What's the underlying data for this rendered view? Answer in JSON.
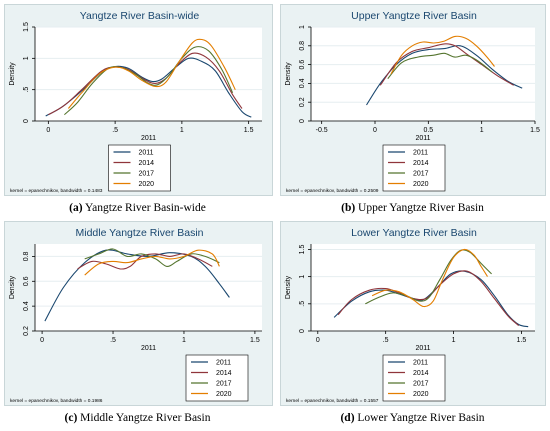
{
  "colors": [
    "#1a476f",
    "#90353b",
    "#55752f",
    "#e37e00"
  ],
  "series_names": [
    "2011",
    "2014",
    "2017",
    "2020"
  ],
  "chart_data": [
    {
      "type": "line",
      "title": "Yangtze River Basin-wide",
      "xlabel": "2011",
      "ylabel": "Density",
      "xlim": [
        -0.1,
        1.6
      ],
      "ylim": [
        0,
        1.5
      ],
      "xticks": [
        0,
        0.5,
        1,
        1.5
      ],
      "xtick_labels": [
        "0",
        ".5",
        "1",
        "1.5"
      ],
      "yticks": [
        0,
        0.5,
        1,
        1.5
      ],
      "ytick_labels": [
        "0",
        ".5",
        "1",
        "1.5"
      ],
      "grid": true,
      "legend": "bottom-center",
      "note": "kernel = epanechnikov, bandwidth = 0.1483",
      "caption_letter": "(a)",
      "caption_text": "Yangtze River Basin-wide",
      "series": [
        {
          "name": "2011",
          "points": [
            [
              -0.02,
              0.08
            ],
            [
              0.1,
              0.22
            ],
            [
              0.25,
              0.48
            ],
            [
              0.4,
              0.78
            ],
            [
              0.5,
              0.87
            ],
            [
              0.6,
              0.84
            ],
            [
              0.7,
              0.7
            ],
            [
              0.78,
              0.63
            ],
            [
              0.85,
              0.67
            ],
            [
              0.95,
              0.85
            ],
            [
              1.05,
              1.0
            ],
            [
              1.15,
              0.95
            ],
            [
              1.25,
              0.8
            ],
            [
              1.35,
              0.45
            ],
            [
              1.45,
              0.15
            ],
            [
              1.52,
              0.06
            ]
          ]
        },
        {
          "name": "2014",
          "points": [
            [
              0.0,
              0.1
            ],
            [
              0.12,
              0.25
            ],
            [
              0.25,
              0.5
            ],
            [
              0.4,
              0.8
            ],
            [
              0.5,
              0.86
            ],
            [
              0.6,
              0.82
            ],
            [
              0.72,
              0.66
            ],
            [
              0.8,
              0.6
            ],
            [
              0.88,
              0.68
            ],
            [
              0.98,
              0.92
            ],
            [
              1.08,
              1.08
            ],
            [
              1.18,
              1.02
            ],
            [
              1.28,
              0.8
            ],
            [
              1.38,
              0.42
            ],
            [
              1.45,
              0.2
            ]
          ]
        },
        {
          "name": "2017",
          "points": [
            [
              0.12,
              0.1
            ],
            [
              0.22,
              0.3
            ],
            [
              0.33,
              0.6
            ],
            [
              0.45,
              0.84
            ],
            [
              0.55,
              0.85
            ],
            [
              0.65,
              0.75
            ],
            [
              0.75,
              0.6
            ],
            [
              0.82,
              0.58
            ],
            [
              0.9,
              0.72
            ],
            [
              1.0,
              1.0
            ],
            [
              1.1,
              1.18
            ],
            [
              1.2,
              1.12
            ],
            [
              1.3,
              0.82
            ],
            [
              1.38,
              0.45
            ]
          ]
        },
        {
          "name": "2020",
          "points": [
            [
              0.15,
              0.2
            ],
            [
              0.25,
              0.45
            ],
            [
              0.38,
              0.75
            ],
            [
              0.5,
              0.86
            ],
            [
              0.6,
              0.8
            ],
            [
              0.7,
              0.65
            ],
            [
              0.8,
              0.55
            ],
            [
              0.88,
              0.62
            ],
            [
              0.98,
              0.95
            ],
            [
              1.08,
              1.25
            ],
            [
              1.15,
              1.3
            ],
            [
              1.22,
              1.2
            ],
            [
              1.32,
              0.85
            ],
            [
              1.4,
              0.5
            ]
          ]
        }
      ]
    },
    {
      "type": "line",
      "title": "Upper Yangtze River Basin",
      "xlabel": "2011",
      "ylabel": "Density",
      "xlim": [
        -0.6,
        1.5
      ],
      "ylim": [
        0,
        1.0
      ],
      "xticks": [
        -0.5,
        0,
        0.5,
        1,
        1.5
      ],
      "xtick_labels": [
        "-0.5",
        "0",
        "0.5",
        "1",
        "1.5"
      ],
      "yticks": [
        0,
        0.2,
        0.4,
        0.6,
        0.8,
        1
      ],
      "ytick_labels": [
        "0",
        "0.2",
        "0.4",
        "0.6",
        "0.8",
        "1"
      ],
      "grid": true,
      "legend": "bottom-center",
      "note": "kernel = epanechnikov, bandwidth = 0.2509",
      "caption_letter": "(b)",
      "caption_text": "Upper Yangtze River Basin",
      "series": [
        {
          "name": "2011",
          "points": [
            [
              -0.08,
              0.17
            ],
            [
              0.05,
              0.4
            ],
            [
              0.2,
              0.6
            ],
            [
              0.35,
              0.72
            ],
            [
              0.5,
              0.76
            ],
            [
              0.65,
              0.77
            ],
            [
              0.8,
              0.8
            ],
            [
              0.95,
              0.7
            ],
            [
              1.1,
              0.55
            ],
            [
              1.25,
              0.42
            ],
            [
              1.38,
              0.35
            ]
          ]
        },
        {
          "name": "2014",
          "points": [
            [
              0.05,
              0.38
            ],
            [
              0.2,
              0.62
            ],
            [
              0.35,
              0.74
            ],
            [
              0.5,
              0.78
            ],
            [
              0.65,
              0.82
            ],
            [
              0.75,
              0.8
            ],
            [
              0.85,
              0.72
            ],
            [
              1.0,
              0.6
            ],
            [
              1.15,
              0.48
            ],
            [
              1.3,
              0.38
            ]
          ]
        },
        {
          "name": "2017",
          "points": [
            [
              0.12,
              0.45
            ],
            [
              0.25,
              0.62
            ],
            [
              0.4,
              0.68
            ],
            [
              0.55,
              0.7
            ],
            [
              0.65,
              0.72
            ],
            [
              0.75,
              0.68
            ],
            [
              0.85,
              0.7
            ],
            [
              0.95,
              0.65
            ],
            [
              1.1,
              0.52
            ]
          ]
        },
        {
          "name": "2020",
          "points": [
            [
              0.15,
              0.5
            ],
            [
              0.25,
              0.7
            ],
            [
              0.35,
              0.8
            ],
            [
              0.45,
              0.84
            ],
            [
              0.55,
              0.83
            ],
            [
              0.65,
              0.85
            ],
            [
              0.75,
              0.9
            ],
            [
              0.85,
              0.88
            ],
            [
              0.95,
              0.8
            ],
            [
              1.05,
              0.68
            ],
            [
              1.12,
              0.58
            ]
          ]
        }
      ]
    },
    {
      "type": "line",
      "title": "Middle Yangtze River Basin",
      "xlabel": "2011",
      "ylabel": "Density",
      "xlim": [
        -0.05,
        1.55
      ],
      "ylim": [
        0.2,
        0.9
      ],
      "xticks": [
        0,
        0.5,
        1,
        1.5
      ],
      "xtick_labels": [
        "0",
        ".5",
        "1",
        "1.5"
      ],
      "yticks": [
        0.2,
        0.4,
        0.6,
        0.8
      ],
      "ytick_labels": [
        "0.2",
        "0.4",
        "0.6",
        "0.8"
      ],
      "grid": true,
      "legend": "bottom-right",
      "note": "kernel = epanechnikov, bandwidth = 0.1986",
      "caption_letter": "(c)",
      "caption_text": "Middle Yangtze River Basin",
      "series": [
        {
          "name": "2011",
          "points": [
            [
              0.02,
              0.28
            ],
            [
              0.15,
              0.55
            ],
            [
              0.3,
              0.75
            ],
            [
              0.45,
              0.85
            ],
            [
              0.6,
              0.82
            ],
            [
              0.75,
              0.8
            ],
            [
              0.9,
              0.83
            ],
            [
              1.05,
              0.8
            ],
            [
              1.15,
              0.72
            ],
            [
              1.25,
              0.58
            ],
            [
              1.32,
              0.47
            ]
          ]
        },
        {
          "name": "2014",
          "points": [
            [
              0.25,
              0.7
            ],
            [
              0.35,
              0.76
            ],
            [
              0.45,
              0.74
            ],
            [
              0.55,
              0.7
            ],
            [
              0.62,
              0.72
            ],
            [
              0.7,
              0.8
            ],
            [
              0.8,
              0.82
            ],
            [
              0.9,
              0.8
            ],
            [
              1.0,
              0.82
            ],
            [
              1.1,
              0.78
            ],
            [
              1.2,
              0.72
            ]
          ]
        },
        {
          "name": "2017",
          "points": [
            [
              0.3,
              0.78
            ],
            [
              0.4,
              0.82
            ],
            [
              0.5,
              0.86
            ],
            [
              0.6,
              0.8
            ],
            [
              0.7,
              0.82
            ],
            [
              0.8,
              0.78
            ],
            [
              0.88,
              0.72
            ],
            [
              0.95,
              0.76
            ],
            [
              1.05,
              0.82
            ],
            [
              1.15,
              0.8
            ],
            [
              1.25,
              0.75
            ]
          ]
        },
        {
          "name": "2020",
          "points": [
            [
              0.3,
              0.65
            ],
            [
              0.4,
              0.74
            ],
            [
              0.5,
              0.76
            ],
            [
              0.6,
              0.75
            ],
            [
              0.7,
              0.78
            ],
            [
              0.8,
              0.8
            ],
            [
              0.9,
              0.78
            ],
            [
              1.0,
              0.8
            ],
            [
              1.1,
              0.85
            ],
            [
              1.2,
              0.82
            ],
            [
              1.25,
              0.72
            ]
          ]
        }
      ]
    },
    {
      "type": "line",
      "title": "Lower Yangtze River Basin",
      "xlabel": "2011",
      "ylabel": "Density",
      "xlim": [
        -0.05,
        1.6
      ],
      "ylim": [
        0,
        1.6
      ],
      "xticks": [
        0,
        0.5,
        1,
        1.5
      ],
      "xtick_labels": [
        "0",
        ".5",
        "1",
        "1.5"
      ],
      "yticks": [
        0,
        0.5,
        1,
        1.5
      ],
      "ytick_labels": [
        "0",
        ".5",
        "1",
        "1.5"
      ],
      "grid": true,
      "legend": "bottom-center",
      "note": "kernel = epanechnikov, bandwidth = 0.1557",
      "caption_letter": "(d)",
      "caption_text": "Lower Yangtze River Basin",
      "series": [
        {
          "name": "2011",
          "points": [
            [
              0.12,
              0.25
            ],
            [
              0.25,
              0.55
            ],
            [
              0.38,
              0.72
            ],
            [
              0.5,
              0.75
            ],
            [
              0.6,
              0.68
            ],
            [
              0.7,
              0.6
            ],
            [
              0.78,
              0.58
            ],
            [
              0.88,
              0.8
            ],
            [
              0.98,
              1.05
            ],
            [
              1.08,
              1.1
            ],
            [
              1.2,
              0.95
            ],
            [
              1.3,
              0.65
            ],
            [
              1.4,
              0.3
            ],
            [
              1.48,
              0.12
            ],
            [
              1.55,
              0.08
            ]
          ]
        },
        {
          "name": "2014",
          "points": [
            [
              0.15,
              0.3
            ],
            [
              0.25,
              0.58
            ],
            [
              0.38,
              0.75
            ],
            [
              0.5,
              0.78
            ],
            [
              0.6,
              0.7
            ],
            [
              0.7,
              0.6
            ],
            [
              0.8,
              0.6
            ],
            [
              0.9,
              0.85
            ],
            [
              1.0,
              1.05
            ],
            [
              1.1,
              1.1
            ],
            [
              1.2,
              0.92
            ],
            [
              1.3,
              0.6
            ],
            [
              1.4,
              0.28
            ],
            [
              1.48,
              0.1
            ]
          ]
        },
        {
          "name": "2017",
          "points": [
            [
              0.35,
              0.5
            ],
            [
              0.45,
              0.62
            ],
            [
              0.55,
              0.7
            ],
            [
              0.65,
              0.65
            ],
            [
              0.75,
              0.55
            ],
            [
              0.82,
              0.62
            ],
            [
              0.9,
              0.95
            ],
            [
              0.98,
              1.3
            ],
            [
              1.05,
              1.48
            ],
            [
              1.12,
              1.45
            ],
            [
              1.2,
              1.25
            ],
            [
              1.28,
              1.05
            ]
          ]
        },
        {
          "name": "2020",
          "points": [
            [
              0.4,
              0.65
            ],
            [
              0.5,
              0.75
            ],
            [
              0.6,
              0.72
            ],
            [
              0.7,
              0.58
            ],
            [
              0.78,
              0.45
            ],
            [
              0.85,
              0.55
            ],
            [
              0.92,
              0.95
            ],
            [
              1.0,
              1.35
            ],
            [
              1.08,
              1.5
            ],
            [
              1.15,
              1.4
            ],
            [
              1.2,
              1.2
            ],
            [
              1.25,
              1.0
            ]
          ]
        }
      ]
    }
  ]
}
